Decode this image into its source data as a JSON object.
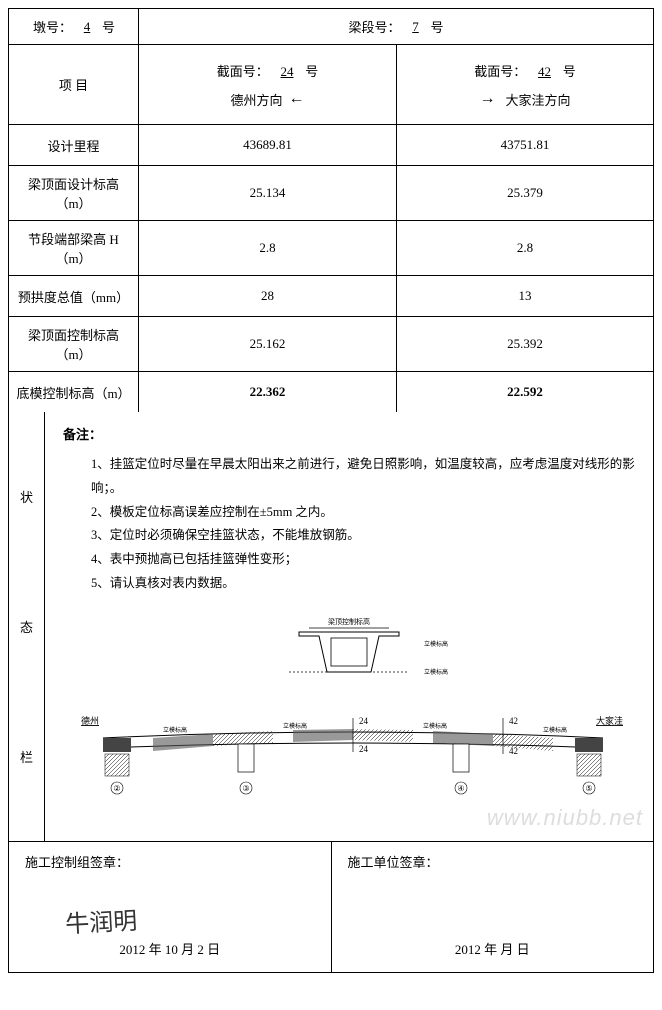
{
  "header": {
    "pier_label_pre": "墩号：",
    "pier_number": "4",
    "pier_label_post": "号",
    "segment_label_pre": "梁段号：",
    "segment_number": "7",
    "segment_label_post": "号"
  },
  "columns": {
    "item_label": "项  目",
    "section_a": {
      "label_pre": "截面号：",
      "number": "24",
      "label_post": "号",
      "direction": "德州方向"
    },
    "section_b": {
      "label_pre": "截面号：",
      "number": "42",
      "label_post": "号",
      "direction": "大家洼方向"
    }
  },
  "rows": [
    {
      "label": "设计里程",
      "a": "43689.81",
      "b": "43751.81"
    },
    {
      "label": "梁顶面设计标高（m）",
      "a": "25.134",
      "b": "25.379"
    },
    {
      "label": "节段端部梁高 H（m）",
      "a": "2.8",
      "b": "2.8"
    },
    {
      "label": "预拱度总值（mm）",
      "a": "28",
      "b": "13"
    },
    {
      "label": "梁顶面控制标高（m）",
      "a": "25.162",
      "b": "25.392"
    },
    {
      "label": "底模控制标高（m）",
      "a": "22.362",
      "b": "22.592",
      "bold": true
    }
  ],
  "status": {
    "side_label_1": "状",
    "side_label_2": "态",
    "side_label_3": "栏",
    "note_title": "备注：",
    "notes": [
      "1、挂篮定位时尽量在早晨太阳出来之前进行，避免日照影响，如温度较高，应考虑温度对线形的影响；。",
      "2、模板定位标高误差应控制在±5mm 之内。",
      "3、定位时必须确保空挂篮状态，不能堆放钢筋。",
      "4、表中预抛高已包括挂篮弹性变形；",
      "5、请认真核对表内数据。"
    ],
    "diagram": {
      "cross_section_top_label": "梁顶控制标高",
      "cross_section_side_label": "立模标高",
      "left_end": "德州",
      "right_end": "大家洼",
      "marker_24": "24",
      "marker_42": "42",
      "small_label": "立模标高",
      "pier_numbers": [
        "②",
        "③",
        "④",
        "⑤"
      ],
      "colors": {
        "outline": "#000000",
        "hatch": "#555555",
        "fill_light": "#ffffff",
        "fill_dark": "#444444"
      }
    }
  },
  "signatures": {
    "left_title": "施工控制组签章：",
    "right_title": "施工单位签章：",
    "left_date": "2012 年 10 月  2 日",
    "right_date": "2012 年        月        日",
    "scribble": "牛润明"
  },
  "watermark": "www.niubb.net"
}
